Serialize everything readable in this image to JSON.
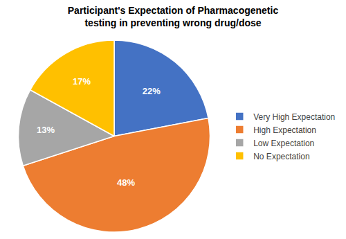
{
  "chart_data": {
    "type": "pie",
    "title": "Participant's Expectation of Pharmacogenetic\ntesting in preventing wrong drug/dose",
    "categories": [
      "Very High Expectation",
      "High Expectation",
      "Low Expectation",
      "No Expectation"
    ],
    "values": [
      22,
      48,
      13,
      17
    ],
    "value_labels": [
      "22%",
      "48%",
      "13%",
      "17%"
    ],
    "colors": [
      "#4472C4",
      "#ED7D31",
      "#A6A6A6",
      "#FFC000"
    ],
    "data_labels": true,
    "legend": "right"
  }
}
